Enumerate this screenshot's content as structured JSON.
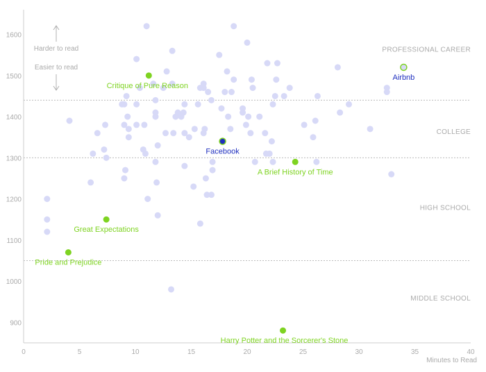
{
  "chart_data": {
    "type": "scatter",
    "xlabel": "Minutes to Read",
    "ylabel": "",
    "xlim": [
      0,
      40
    ],
    "ylim": [
      850,
      1660
    ],
    "x_ticks": [
      0,
      5,
      10,
      15,
      20,
      25,
      30,
      35,
      40
    ],
    "y_ticks": [
      900,
      1000,
      1100,
      1200,
      1300,
      1400,
      1500,
      1600
    ],
    "grid": false,
    "zones": [
      {
        "label": "PROFESSIONAL CAREER",
        "label_y": 1565
      },
      {
        "label": "COLLEGE",
        "label_y": 1365
      },
      {
        "label": "HIGH SCHOOL",
        "label_y": 1180
      },
      {
        "label": "MIDDLE SCHOOL",
        "label_y": 960
      }
    ],
    "thresholds": [
      1440,
      1300,
      1050
    ],
    "hints": {
      "up": "Harder to read",
      "down": "Easier to read"
    },
    "colors": {
      "background_points": "#d7d9f7",
      "book_points": "#7ed321",
      "highlight_points": "#1f2fbf",
      "highlight_ring": "#7ed321",
      "threshold_line": "#bbbbbb",
      "axis": "#cccccc"
    },
    "background_points": [
      [
        2.1,
        1200
      ],
      [
        2.1,
        1150
      ],
      [
        2.1,
        1120
      ],
      [
        4.1,
        1390
      ],
      [
        6.0,
        1240
      ],
      [
        6.2,
        1310
      ],
      [
        6.6,
        1360
      ],
      [
        7.2,
        1320
      ],
      [
        7.3,
        1380
      ],
      [
        7.4,
        1300
      ],
      [
        8.8,
        1430
      ],
      [
        9.0,
        1430
      ],
      [
        9.0,
        1380
      ],
      [
        9.0,
        1250
      ],
      [
        9.1,
        1270
      ],
      [
        9.2,
        1450
      ],
      [
        9.3,
        1400
      ],
      [
        9.4,
        1350
      ],
      [
        9.4,
        1370
      ],
      [
        10.1,
        1540
      ],
      [
        10.1,
        1430
      ],
      [
        10.1,
        1380
      ],
      [
        10.4,
        1470
      ],
      [
        10.7,
        1320
      ],
      [
        10.8,
        1380
      ],
      [
        10.9,
        1310
      ],
      [
        11.0,
        1620
      ],
      [
        11.1,
        1200
      ],
      [
        11.6,
        1480
      ],
      [
        11.8,
        1440
      ],
      [
        11.8,
        1410
      ],
      [
        11.8,
        1400
      ],
      [
        11.8,
        1290
      ],
      [
        11.9,
        1240
      ],
      [
        12.0,
        1160
      ],
      [
        12.0,
        1330
      ],
      [
        12.5,
        1470
      ],
      [
        12.7,
        1360
      ],
      [
        12.8,
        1510
      ],
      [
        13.2,
        980
      ],
      [
        13.3,
        1560
      ],
      [
        13.3,
        1480
      ],
      [
        13.4,
        1360
      ],
      [
        13.6,
        1400
      ],
      [
        13.8,
        1410
      ],
      [
        14.1,
        1400
      ],
      [
        14.3,
        1410
      ],
      [
        14.4,
        1430
      ],
      [
        14.4,
        1360
      ],
      [
        14.4,
        1280
      ],
      [
        14.8,
        1350
      ],
      [
        15.2,
        1230
      ],
      [
        15.3,
        1370
      ],
      [
        15.6,
        1430
      ],
      [
        15.8,
        1470
      ],
      [
        15.8,
        1140
      ],
      [
        16.1,
        1480
      ],
      [
        16.1,
        1470
      ],
      [
        16.1,
        1360
      ],
      [
        16.2,
        1370
      ],
      [
        16.3,
        1250
      ],
      [
        16.4,
        1210
      ],
      [
        16.5,
        1460
      ],
      [
        16.8,
        1440
      ],
      [
        16.8,
        1210
      ],
      [
        16.9,
        1290
      ],
      [
        16.9,
        1270
      ],
      [
        17.5,
        1550
      ],
      [
        17.7,
        1420
      ],
      [
        18.0,
        1460
      ],
      [
        18.2,
        1510
      ],
      [
        18.3,
        1400
      ],
      [
        18.5,
        1370
      ],
      [
        18.6,
        1460
      ],
      [
        18.8,
        1620
      ],
      [
        18.8,
        1490
      ],
      [
        19.6,
        1420
      ],
      [
        19.6,
        1410
      ],
      [
        19.9,
        1380
      ],
      [
        20.0,
        1580
      ],
      [
        20.1,
        1400
      ],
      [
        20.3,
        1360
      ],
      [
        20.4,
        1490
      ],
      [
        20.5,
        1470
      ],
      [
        20.7,
        1290
      ],
      [
        21.1,
        1400
      ],
      [
        21.6,
        1360
      ],
      [
        21.7,
        1310
      ],
      [
        21.8,
        1530
      ],
      [
        22.0,
        1310
      ],
      [
        22.2,
        1340
      ],
      [
        22.3,
        1290
      ],
      [
        22.3,
        1430
      ],
      [
        22.5,
        1450
      ],
      [
        22.6,
        1490
      ],
      [
        22.7,
        1530
      ],
      [
        23.3,
        1450
      ],
      [
        23.8,
        1470
      ],
      [
        25.1,
        1380
      ],
      [
        25.9,
        1350
      ],
      [
        26.1,
        1390
      ],
      [
        26.2,
        1290
      ],
      [
        26.3,
        1450
      ],
      [
        28.1,
        1520
      ],
      [
        28.3,
        1410
      ],
      [
        29.1,
        1430
      ],
      [
        31.0,
        1370
      ],
      [
        32.5,
        1460
      ],
      [
        32.5,
        1470
      ],
      [
        32.9,
        1260
      ]
    ],
    "books": [
      {
        "label": "Critique of Pure Reason",
        "x": 11.2,
        "y": 1500,
        "anchor": "middle",
        "dx": -2,
        "dy": 18
      },
      {
        "label": "A Brief History of Time",
        "x": 24.3,
        "y": 1290,
        "anchor": "middle",
        "dx": 0,
        "dy": 18
      },
      {
        "label": "Great Expectations",
        "x": 7.4,
        "y": 1150,
        "anchor": "middle",
        "dx": 0,
        "dy": 18
      },
      {
        "label": "Pride and Prejudice",
        "x": 4.0,
        "y": 1070,
        "anchor": "middle",
        "dx": 0,
        "dy": 18
      },
      {
        "label": "Harry Potter and the Sorcerer's Stone",
        "x": 23.2,
        "y": 880,
        "anchor": "middle",
        "dx": 2,
        "dy": 18
      }
    ],
    "highlights": [
      {
        "label": "Facebook",
        "x": 17.8,
        "y": 1340,
        "dx": 0,
        "dy": 18,
        "ringed": true
      },
      {
        "label": "Airbnb",
        "x": 34.0,
        "y": 1520,
        "dx": 0,
        "dy": 18,
        "ringed": false
      }
    ]
  }
}
